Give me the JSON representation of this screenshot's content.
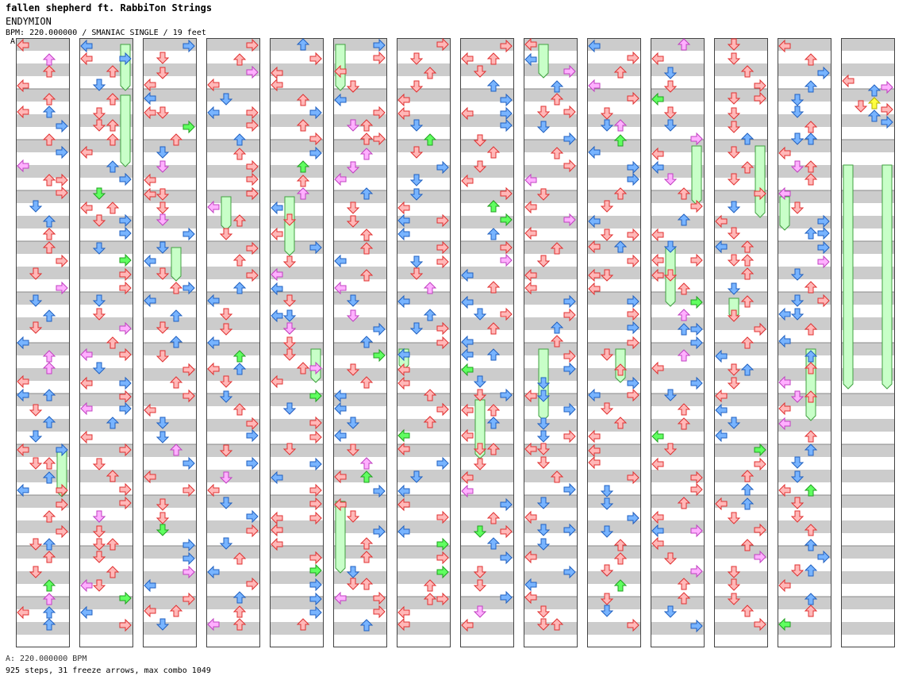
{
  "header": {
    "title": "fallen shepherd ft. RabbiTon Strings",
    "song": "ENDYMION",
    "meta": "BPM: 220.000000 / SMANIAC SINGLE / 19 feet"
  },
  "footer": {
    "bpm_line": "A: 220.000000 BPM",
    "stats": "925 steps, 31 freeze arrows, max combo 1049"
  },
  "marker_label": "A",
  "columns_count": 14,
  "colors": {
    "band_gray": "#cccccc",
    "border": "#444444",
    "arrow_red": "#ffb8b8",
    "arrow_red_stroke": "#e03030",
    "arrow_blue": "#78b4ff",
    "arrow_blue_stroke": "#2060c0",
    "arrow_pink": "#ffb0ff",
    "arrow_pink_stroke": "#c040c0",
    "arrow_green": "#60ff60",
    "arrow_green_stroke": "#20a020",
    "arrow_yellow": "#ffff40",
    "arrow_yellow_stroke": "#b0b000",
    "freeze_fill": "#c8ffc8",
    "freeze_stroke": "#40a040"
  }
}
